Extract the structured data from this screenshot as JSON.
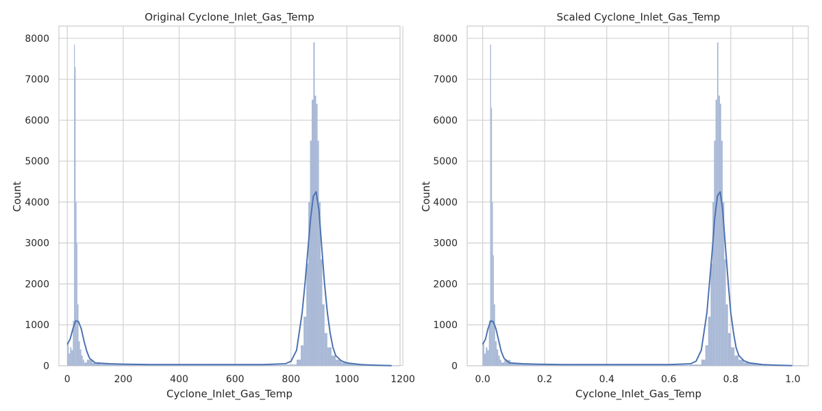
{
  "chart_data": [
    {
      "type": "histogram",
      "title": "Original Cyclone_Inlet_Gas_Temp",
      "xlabel": "Cyclone_Inlet_Gas_Temp",
      "ylabel": "Count",
      "xlim": [
        -30,
        1190
      ],
      "ylim": [
        0,
        8300
      ],
      "xticks": [
        0,
        200,
        400,
        600,
        800,
        1000,
        1200
      ],
      "yticks": [
        0,
        1000,
        2000,
        3000,
        4000,
        5000,
        6000,
        7000,
        8000
      ],
      "grid": true,
      "bar_color": "#a9b9d6",
      "line_color": "#4c72b0",
      "bins": [
        {
          "x": 0,
          "y": 520
        },
        {
          "x": 5,
          "y": 300
        },
        {
          "x": 10,
          "y": 450
        },
        {
          "x": 15,
          "y": 380
        },
        {
          "x": 20,
          "y": 1100
        },
        {
          "x": 24,
          "y": 7850
        },
        {
          "x": 27,
          "y": 7300
        },
        {
          "x": 30,
          "y": 4000
        },
        {
          "x": 33,
          "y": 3000
        },
        {
          "x": 36,
          "y": 1500
        },
        {
          "x": 40,
          "y": 600
        },
        {
          "x": 45,
          "y": 400
        },
        {
          "x": 50,
          "y": 250
        },
        {
          "x": 55,
          "y": 150
        },
        {
          "x": 60,
          "y": 80
        },
        {
          "x": 70,
          "y": 150
        },
        {
          "x": 80,
          "y": 140
        },
        {
          "x": 90,
          "y": 70
        },
        {
          "x": 100,
          "y": 50
        },
        {
          "x": 120,
          "y": 40
        },
        {
          "x": 150,
          "y": 30
        },
        {
          "x": 200,
          "y": 25
        },
        {
          "x": 300,
          "y": 20
        },
        {
          "x": 400,
          "y": 20
        },
        {
          "x": 500,
          "y": 20
        },
        {
          "x": 600,
          "y": 20
        },
        {
          "x": 700,
          "y": 20
        },
        {
          "x": 780,
          "y": 30
        },
        {
          "x": 820,
          "y": 150
        },
        {
          "x": 835,
          "y": 500
        },
        {
          "x": 845,
          "y": 1200
        },
        {
          "x": 855,
          "y": 2500
        },
        {
          "x": 862,
          "y": 4000
        },
        {
          "x": 868,
          "y": 5500
        },
        {
          "x": 874,
          "y": 6500
        },
        {
          "x": 880,
          "y": 7900
        },
        {
          "x": 885,
          "y": 6600
        },
        {
          "x": 890,
          "y": 6400
        },
        {
          "x": 895,
          "y": 5500
        },
        {
          "x": 900,
          "y": 4000
        },
        {
          "x": 906,
          "y": 2600
        },
        {
          "x": 912,
          "y": 1500
        },
        {
          "x": 920,
          "y": 800
        },
        {
          "x": 930,
          "y": 450
        },
        {
          "x": 945,
          "y": 250
        },
        {
          "x": 960,
          "y": 150
        },
        {
          "x": 980,
          "y": 80
        },
        {
          "x": 1000,
          "y": 50
        },
        {
          "x": 1050,
          "y": 30
        },
        {
          "x": 1100,
          "y": 20
        },
        {
          "x": 1150,
          "y": 10
        }
      ],
      "kde": {
        "x": [
          0,
          10,
          20,
          30,
          40,
          50,
          60,
          70,
          80,
          100,
          150,
          200,
          300,
          400,
          500,
          600,
          700,
          780,
          800,
          820,
          840,
          850,
          860,
          870,
          880,
          890,
          900,
          910,
          920,
          930,
          940,
          950,
          960,
          980,
          1000,
          1050,
          1100,
          1160
        ],
        "y": [
          520,
          650,
          900,
          1100,
          1080,
          900,
          600,
          350,
          180,
          70,
          50,
          40,
          30,
          30,
          30,
          30,
          30,
          50,
          110,
          380,
          1300,
          2000,
          2800,
          3600,
          4150,
          4250,
          3800,
          2900,
          2000,
          1300,
          800,
          450,
          250,
          120,
          70,
          30,
          15,
          5
        ]
      }
    },
    {
      "type": "histogram",
      "title": "Scaled Cyclone_Inlet_Gas_Temp",
      "xlabel": "Cyclone_Inlet_Gas_Temp",
      "ylabel": "Count",
      "xlim": [
        -0.05,
        1.05
      ],
      "ylim": [
        0,
        8300
      ],
      "xticks": [
        0.0,
        0.2,
        0.4,
        0.6,
        0.8,
        1.0
      ],
      "xtick_labels": [
        "0.0",
        "0.2",
        "0.4",
        "0.6",
        "0.8",
        "1.0"
      ],
      "yticks": [
        0,
        1000,
        2000,
        3000,
        4000,
        5000,
        6000,
        7000,
        8000
      ],
      "grid": true,
      "bar_color": "#a9b9d6",
      "line_color": "#4c72b0",
      "bins": [
        {
          "x": 0.0,
          "y": 520
        },
        {
          "x": 0.005,
          "y": 300
        },
        {
          "x": 0.01,
          "y": 450
        },
        {
          "x": 0.015,
          "y": 380
        },
        {
          "x": 0.02,
          "y": 1100
        },
        {
          "x": 0.024,
          "y": 7850
        },
        {
          "x": 0.027,
          "y": 6300
        },
        {
          "x": 0.03,
          "y": 4000
        },
        {
          "x": 0.033,
          "y": 2700
        },
        {
          "x": 0.036,
          "y": 1500
        },
        {
          "x": 0.04,
          "y": 600
        },
        {
          "x": 0.045,
          "y": 400
        },
        {
          "x": 0.05,
          "y": 250
        },
        {
          "x": 0.055,
          "y": 150
        },
        {
          "x": 0.06,
          "y": 80
        },
        {
          "x": 0.07,
          "y": 150
        },
        {
          "x": 0.08,
          "y": 140
        },
        {
          "x": 0.09,
          "y": 70
        },
        {
          "x": 0.1,
          "y": 50
        },
        {
          "x": 0.12,
          "y": 40
        },
        {
          "x": 0.15,
          "y": 30
        },
        {
          "x": 0.2,
          "y": 25
        },
        {
          "x": 0.3,
          "y": 20
        },
        {
          "x": 0.4,
          "y": 20
        },
        {
          "x": 0.5,
          "y": 20
        },
        {
          "x": 0.6,
          "y": 20
        },
        {
          "x": 0.67,
          "y": 30
        },
        {
          "x": 0.705,
          "y": 150
        },
        {
          "x": 0.718,
          "y": 500
        },
        {
          "x": 0.727,
          "y": 1200
        },
        {
          "x": 0.735,
          "y": 2500
        },
        {
          "x": 0.741,
          "y": 4000
        },
        {
          "x": 0.746,
          "y": 5500
        },
        {
          "x": 0.751,
          "y": 6500
        },
        {
          "x": 0.756,
          "y": 7900
        },
        {
          "x": 0.76,
          "y": 6600
        },
        {
          "x": 0.765,
          "y": 6400
        },
        {
          "x": 0.769,
          "y": 5500
        },
        {
          "x": 0.774,
          "y": 4000
        },
        {
          "x": 0.779,
          "y": 2600
        },
        {
          "x": 0.784,
          "y": 1500
        },
        {
          "x": 0.791,
          "y": 800
        },
        {
          "x": 0.8,
          "y": 450
        },
        {
          "x": 0.812,
          "y": 250
        },
        {
          "x": 0.825,
          "y": 150
        },
        {
          "x": 0.842,
          "y": 80
        },
        {
          "x": 0.86,
          "y": 50
        },
        {
          "x": 0.9,
          "y": 30
        },
        {
          "x": 0.95,
          "y": 20
        },
        {
          "x": 0.99,
          "y": 10
        }
      ],
      "kde": {
        "x": [
          0.0,
          0.009,
          0.017,
          0.026,
          0.034,
          0.043,
          0.052,
          0.06,
          0.069,
          0.086,
          0.129,
          0.172,
          0.258,
          0.344,
          0.43,
          0.516,
          0.602,
          0.671,
          0.688,
          0.705,
          0.723,
          0.731,
          0.74,
          0.748,
          0.757,
          0.766,
          0.774,
          0.783,
          0.792,
          0.8,
          0.809,
          0.817,
          0.826,
          0.843,
          0.86,
          0.903,
          0.946,
          0.998
        ],
        "y": [
          520,
          650,
          900,
          1100,
          1080,
          900,
          600,
          350,
          180,
          70,
          50,
          40,
          30,
          30,
          30,
          30,
          30,
          50,
          110,
          380,
          1300,
          2000,
          2800,
          3600,
          4150,
          4250,
          3800,
          2900,
          2000,
          1300,
          800,
          450,
          250,
          120,
          70,
          30,
          15,
          5
        ]
      }
    }
  ]
}
